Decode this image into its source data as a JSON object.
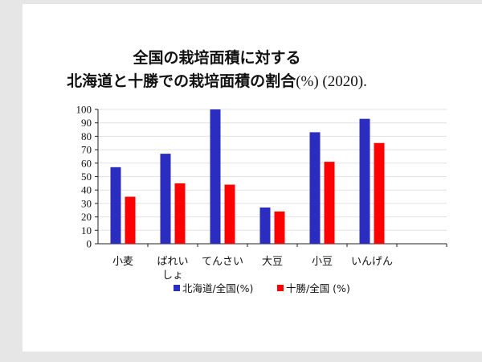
{
  "chart_data": {
    "type": "bar",
    "title_line1": "全国の栽培面積に対する",
    "title_line2_main": "北海道と十勝での栽培面積の割合",
    "title_line2_tail": "(%) (2020).",
    "categories": [
      [
        "小麦"
      ],
      [
        "ばれい",
        "しょ"
      ],
      [
        "てんさい"
      ],
      [
        "大豆"
      ],
      [
        "小豆"
      ],
      [
        "いんげん"
      ],
      [
        ""
      ]
    ],
    "series": [
      {
        "name": "北海道/全国(%)",
        "color": "#2a2dbf",
        "values": [
          57,
          67,
          100,
          27,
          83,
          93,
          null
        ]
      },
      {
        "name": "十勝/全国 (%)",
        "color": "#ff0000",
        "values": [
          35,
          45,
          44,
          24,
          61,
          75,
          null
        ]
      }
    ],
    "ylim": [
      0,
      100
    ],
    "yticks": [
      0,
      10,
      20,
      30,
      40,
      50,
      60,
      70,
      80,
      90,
      100
    ],
    "xlabel": "",
    "ylabel": "",
    "grid": true,
    "legend_position": "bottom"
  }
}
